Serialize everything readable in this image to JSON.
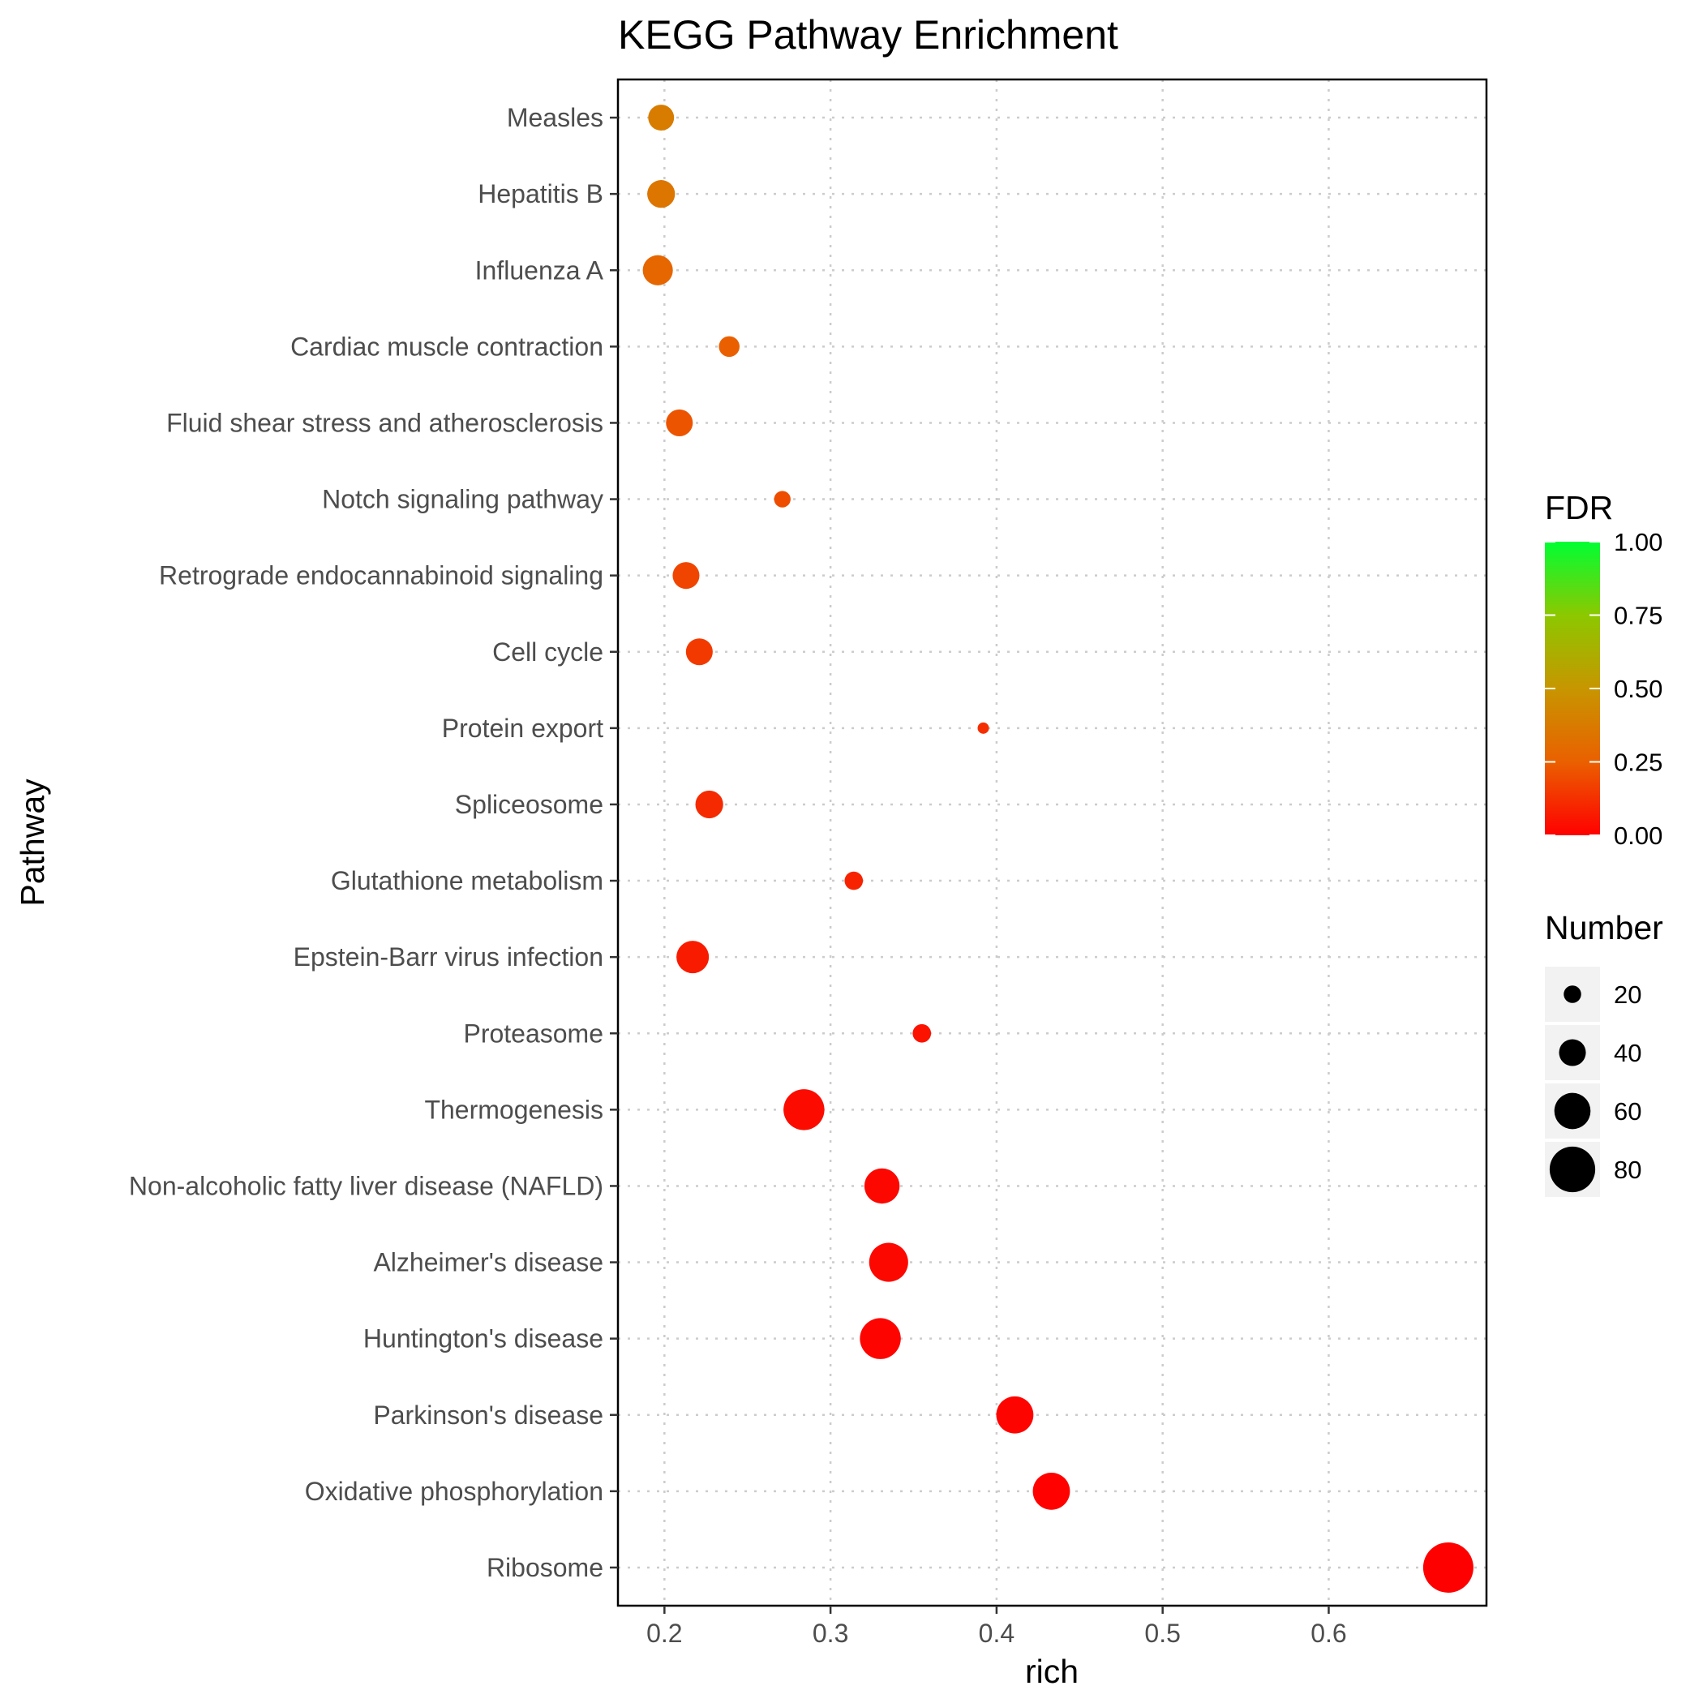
{
  "chart_data": {
    "type": "scatter",
    "title": "KEGG Pathway Enrichment",
    "xlabel": "rich",
    "ylabel": "Pathway",
    "xlim": [
      0.172,
      0.695
    ],
    "x_ticks": [
      {
        "value": 0.2,
        "label": "0.2"
      },
      {
        "value": 0.3,
        "label": "0.3"
      },
      {
        "value": 0.4,
        "label": "0.4"
      },
      {
        "value": 0.5,
        "label": "0.5"
      },
      {
        "value": 0.6,
        "label": "0.6"
      }
    ],
    "grid": true,
    "points": [
      {
        "pathway": "Measles",
        "rich": 0.198,
        "fdr": 0.38,
        "number": 38
      },
      {
        "pathway": "Hepatitis B",
        "rich": 0.198,
        "fdr": 0.35,
        "number": 42
      },
      {
        "pathway": "Influenza A",
        "rich": 0.196,
        "fdr": 0.28,
        "number": 47
      },
      {
        "pathway": "Cardiac muscle contraction",
        "rich": 0.239,
        "fdr": 0.25,
        "number": 27
      },
      {
        "pathway": "Fluid shear stress and atherosclerosis",
        "rich": 0.209,
        "fdr": 0.22,
        "number": 40
      },
      {
        "pathway": "Notch signaling pathway",
        "rich": 0.271,
        "fdr": 0.2,
        "number": 18
      },
      {
        "pathway": "Retrograde endocannabinoid signaling",
        "rich": 0.213,
        "fdr": 0.18,
        "number": 40
      },
      {
        "pathway": "Cell cycle",
        "rich": 0.221,
        "fdr": 0.15,
        "number": 40
      },
      {
        "pathway": "Protein export",
        "rich": 0.392,
        "fdr": 0.12,
        "number": 7
      },
      {
        "pathway": "Spliceosome",
        "rich": 0.227,
        "fdr": 0.11,
        "number": 42
      },
      {
        "pathway": "Glutathione metabolism",
        "rich": 0.314,
        "fdr": 0.09,
        "number": 22
      },
      {
        "pathway": "Epstein-Barr virus infection",
        "rich": 0.217,
        "fdr": 0.07,
        "number": 52
      },
      {
        "pathway": "Proteasome",
        "rich": 0.355,
        "fdr": 0.05,
        "number": 22
      },
      {
        "pathway": "Thermogenesis",
        "rich": 0.284,
        "fdr": 0.03,
        "number": 70
      },
      {
        "pathway": "Non-alcoholic fatty liver disease (NAFLD)",
        "rich": 0.331,
        "fdr": 0.02,
        "number": 58
      },
      {
        "pathway": "Alzheimer's disease",
        "rich": 0.335,
        "fdr": 0.02,
        "number": 66
      },
      {
        "pathway": "Huntington's disease",
        "rich": 0.33,
        "fdr": 0.01,
        "number": 70
      },
      {
        "pathway": "Parkinson's disease",
        "rich": 0.411,
        "fdr": 0.01,
        "number": 62
      },
      {
        "pathway": "Oxidative phosphorylation",
        "rich": 0.433,
        "fdr": 0.005,
        "number": 62
      },
      {
        "pathway": "Ribosome",
        "rich": 0.672,
        "fdr": 0.0,
        "number": 90
      }
    ],
    "color_legend": {
      "title": "FDR",
      "low_color": "#ff0000",
      "high_color": "#00ff33",
      "range": [
        0.0,
        1.0
      ],
      "ticks": [
        {
          "value": 1.0,
          "label": "1.00"
        },
        {
          "value": 0.75,
          "label": "0.75"
        },
        {
          "value": 0.5,
          "label": "0.50"
        },
        {
          "value": 0.25,
          "label": "0.25"
        },
        {
          "value": 0.0,
          "label": "0.00"
        }
      ]
    },
    "size_legend": {
      "title": "Number",
      "size_range": [
        7,
        90
      ],
      "entries": [
        {
          "value": 20,
          "label": "20"
        },
        {
          "value": 40,
          "label": "40"
        },
        {
          "value": 60,
          "label": "60"
        },
        {
          "value": 80,
          "label": "80"
        }
      ]
    }
  }
}
